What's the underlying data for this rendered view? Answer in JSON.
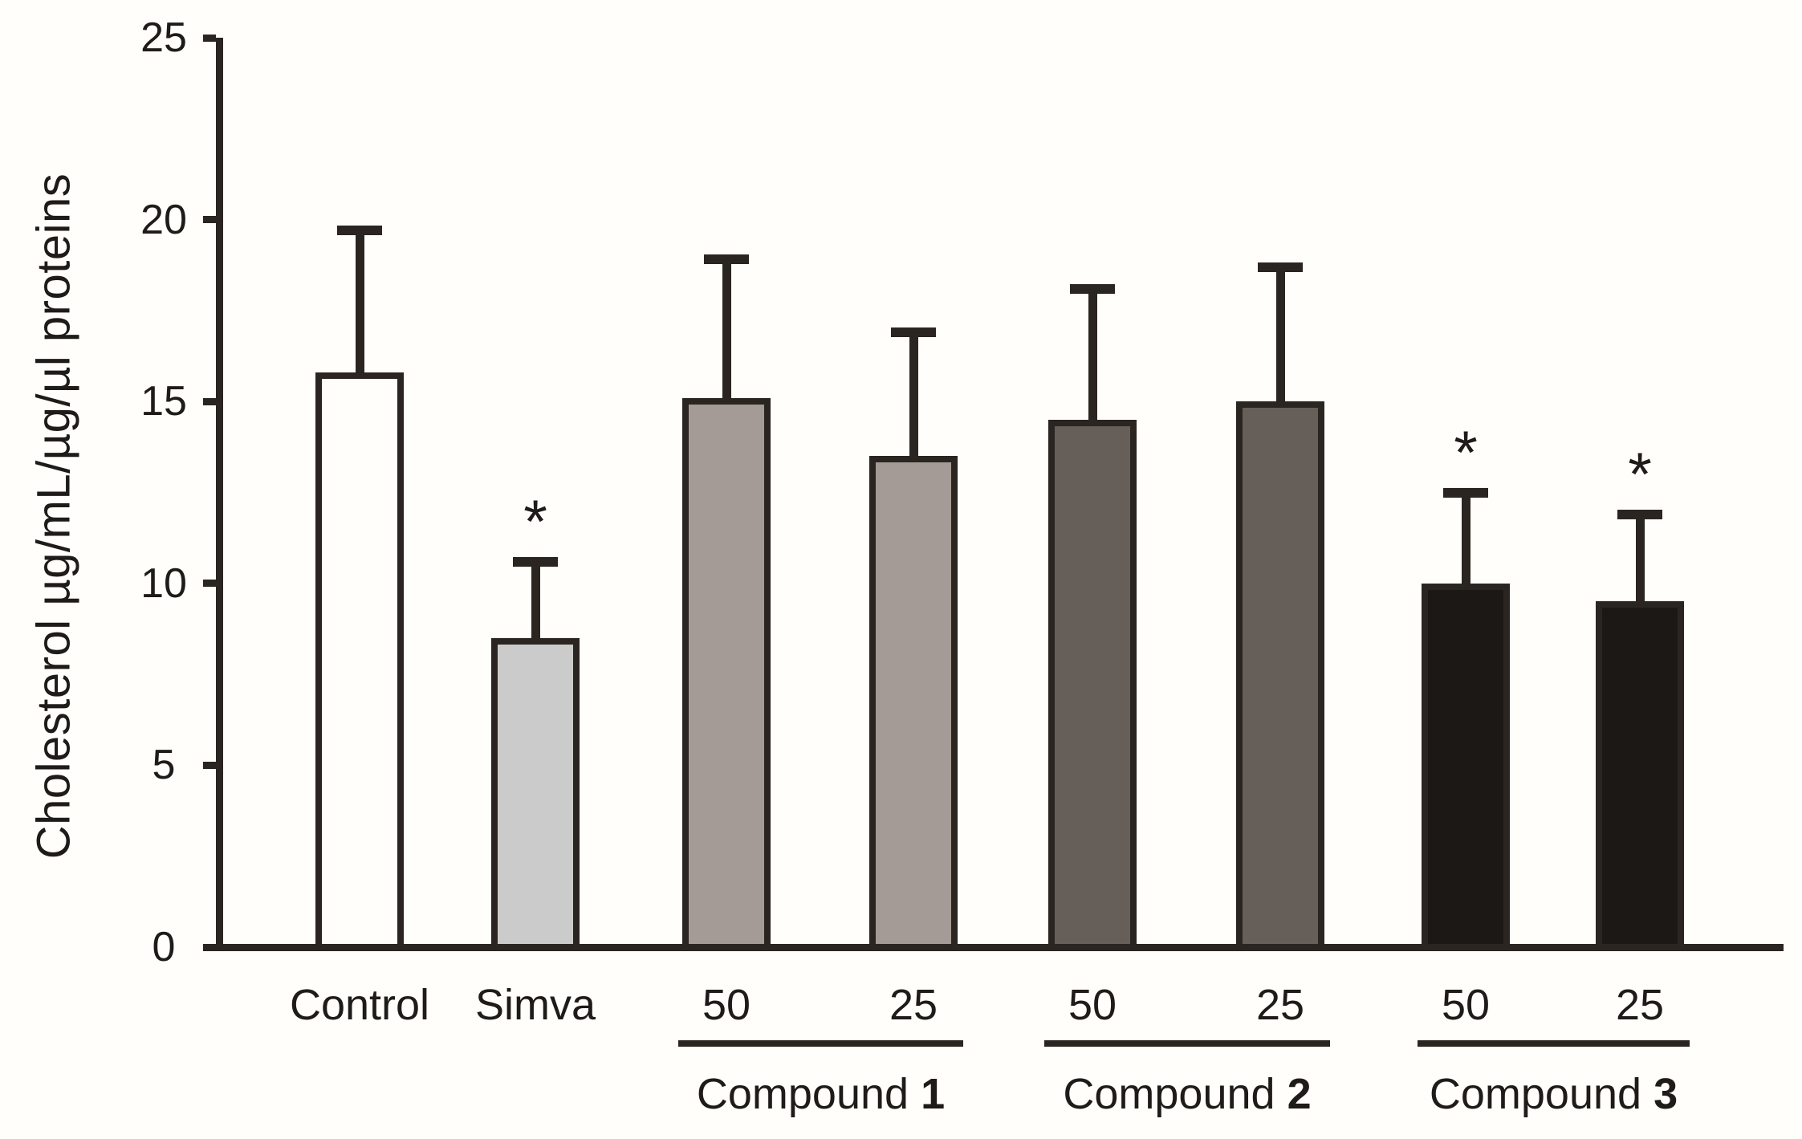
{
  "figure": {
    "background": "#fffefb",
    "axis_color": "#2a2521",
    "text_color": "#1e1b18"
  },
  "chart_data": {
    "type": "bar",
    "title": "",
    "xlabel": "",
    "ylabel": "Cholesterol µg/mL/µg/µl proteins",
    "ylim": [
      0,
      25
    ],
    "yticks": [
      0,
      5,
      10,
      15,
      20,
      25
    ],
    "grid": false,
    "legend_position": "none",
    "error_bars": "upper SD whiskers with caps",
    "sig_symbol": "*",
    "bars": [
      {
        "name": "control",
        "label": "Control",
        "value": 15.8,
        "error_top": 19.7,
        "fill": "#fffefb",
        "significant": false
      },
      {
        "name": "simva",
        "label": "Simva",
        "value": 8.5,
        "error_top": 10.6,
        "fill": "#cbcbcb",
        "significant": true
      },
      {
        "name": "compound1-50",
        "label": "50",
        "value": 15.1,
        "error_top": 18.9,
        "fill": "#a49b96",
        "significant": false
      },
      {
        "name": "compound1-25",
        "label": "25",
        "value": 13.5,
        "error_top": 16.9,
        "fill": "#a49b96",
        "significant": false
      },
      {
        "name": "compound2-50",
        "label": "50",
        "value": 14.5,
        "error_top": 18.1,
        "fill": "#665e58",
        "significant": false
      },
      {
        "name": "compound2-25",
        "label": "25",
        "value": 15.0,
        "error_top": 18.7,
        "fill": "#665e58",
        "significant": false
      },
      {
        "name": "compound3-50",
        "label": "50",
        "value": 10.0,
        "error_top": 12.5,
        "fill": "#1b1815",
        "significant": true
      },
      {
        "name": "compound3-25",
        "label": "25",
        "value": 9.5,
        "error_top": 11.9,
        "fill": "#1b1815",
        "significant": true
      }
    ],
    "groups": [
      {
        "word": "Compound",
        "number": "1",
        "first_bar": 2,
        "last_bar": 3
      },
      {
        "word": "Compound",
        "number": "2",
        "first_bar": 4,
        "last_bar": 5
      },
      {
        "word": "Compound",
        "number": "3",
        "first_bar": 6,
        "last_bar": 7
      }
    ]
  }
}
